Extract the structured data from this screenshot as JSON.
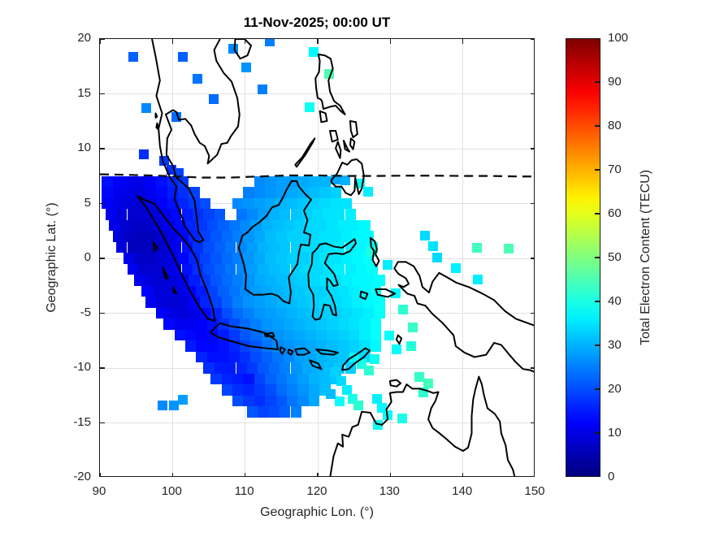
{
  "title": "11-Nov-2025; 00:00 UT",
  "axes": {
    "xlabel": "Geographic Lon. (°)",
    "ylabel": "Geographic Lat. (°)",
    "x_ticks": [
      90,
      100,
      110,
      120,
      130,
      140,
      150
    ],
    "y_ticks": [
      20,
      15,
      10,
      5,
      0,
      -5,
      -10,
      -15,
      -20
    ],
    "xlim": [
      90,
      150
    ],
    "ylim": [
      -20,
      20
    ],
    "grid": true
  },
  "colorbar": {
    "label": "Total Electron Content (TECU)",
    "ticks": [
      0,
      10,
      20,
      30,
      40,
      50,
      60,
      70,
      80,
      90,
      100
    ],
    "min": 0,
    "max": 100,
    "colormap": "jet"
  },
  "chart_data": {
    "type": "heatmap",
    "title": "11-Nov-2025; 00:00 UT",
    "xlabel": "Geographic Lon. (°)",
    "ylabel": "Geographic Lat. (°)",
    "xlim": [
      90,
      150
    ],
    "ylim": [
      -20,
      20
    ],
    "units": "TECU",
    "clim": [
      0,
      100
    ],
    "colormap": "jet",
    "legend": "colorbar right",
    "annotations": [
      "dashed line: magnetic dip equator near 7.5° N"
    ],
    "dip_equator": [
      [
        90,
        7.62
      ],
      [
        95,
        7.55
      ],
      [
        100,
        7.45
      ],
      [
        104,
        7.32
      ],
      [
        108,
        7.32
      ],
      [
        112,
        7.42
      ],
      [
        116,
        7.52
      ],
      [
        120,
        7.52
      ],
      [
        124,
        7.47
      ],
      [
        128,
        7.47
      ],
      [
        132,
        7.5
      ],
      [
        136,
        7.5
      ],
      [
        140,
        7.47
      ],
      [
        144,
        7.47
      ],
      [
        148,
        7.42
      ],
      [
        150,
        7.42
      ]
    ],
    "cell_size_deg": {
      "lon": 1.5,
      "lat": 1.0
    },
    "rows": [
      {
        "lat": 7,
        "lon_start": 91,
        "values": [
          14,
          12,
          11,
          10,
          12,
          14,
          16,
          18,
          null,
          null,
          null,
          null,
          null,
          null,
          26,
          27,
          28,
          28,
          29,
          30,
          30
        ]
      },
      {
        "lat": 6,
        "lon_start": 91,
        "values": [
          13,
          11,
          10,
          9,
          11,
          13,
          15,
          17,
          19,
          null,
          null,
          null,
          null,
          25,
          26,
          27,
          28,
          29,
          30,
          31,
          32,
          33
        ]
      },
      {
        "lat": 5,
        "lon_start": 91,
        "values": [
          12,
          10,
          9,
          8,
          10,
          12,
          14,
          16,
          18,
          20,
          null,
          null,
          26,
          27,
          28,
          29,
          30,
          31,
          32,
          33,
          34,
          35,
          35
        ]
      },
      {
        "lat": 4,
        "lon_start": 91.5,
        "values": [
          11,
          9,
          8,
          8,
          9,
          11,
          13,
          15,
          17,
          19,
          21,
          null,
          24,
          26,
          28,
          30,
          31,
          32,
          33,
          34,
          35,
          35,
          36
        ]
      },
      {
        "lat": 3,
        "lon_start": 92,
        "values": [
          10,
          8,
          7,
          7,
          9,
          11,
          13,
          16,
          18,
          20,
          22,
          24,
          26,
          28,
          30,
          31,
          32,
          33,
          34,
          34,
          35,
          36,
          36,
          37
        ]
      },
      {
        "lat": 2,
        "lon_start": 92.5,
        "values": [
          9,
          7,
          6,
          6,
          8,
          10,
          13,
          16,
          19,
          21,
          23,
          25,
          27,
          29,
          31,
          32,
          33,
          33,
          34,
          35,
          35,
          36,
          37,
          37
        ]
      },
      {
        "lat": 1,
        "lon_start": 93,
        "values": [
          9,
          6,
          6,
          6,
          8,
          11,
          14,
          17,
          20,
          22,
          24,
          26,
          28,
          30,
          31,
          32,
          33,
          34,
          34,
          35,
          36,
          36,
          37,
          38
        ]
      },
      {
        "lat": 0,
        "lon_start": 94,
        "values": [
          10,
          7,
          7,
          8,
          10,
          13,
          16,
          19,
          21,
          23,
          25,
          27,
          29,
          31,
          32,
          33,
          33,
          34,
          35,
          35,
          36,
          37,
          38
        ]
      },
      {
        "lat": -1,
        "lon_start": 94.5,
        "values": [
          11,
          8,
          8,
          9,
          11,
          14,
          17,
          20,
          22,
          24,
          26,
          28,
          30,
          31,
          32,
          33,
          34,
          34,
          35,
          36,
          36,
          37,
          38
        ]
      },
      {
        "lat": -2,
        "lon_start": 95.5,
        "values": [
          11,
          9,
          8,
          9,
          11,
          15,
          18,
          21,
          23,
          25,
          27,
          29,
          30,
          31,
          32,
          33,
          34,
          35,
          35,
          36,
          37,
          37,
          38
        ]
      },
      {
        "lat": -3,
        "lon_start": 96.5,
        "values": [
          12,
          9,
          9,
          10,
          12,
          15,
          19,
          22,
          24,
          26,
          28,
          29,
          30,
          31,
          32,
          33,
          33,
          34,
          35,
          36,
          37,
          38
        ]
      },
      {
        "lat": -4,
        "lon_start": 97,
        "values": [
          11,
          9,
          8,
          9,
          12,
          16,
          19,
          22,
          25,
          27,
          28,
          29,
          30,
          31,
          32,
          33,
          34,
          34,
          35,
          36,
          37,
          38
        ]
      },
      {
        "lat": -5,
        "lon_start": 98.5,
        "values": [
          12,
          10,
          9,
          10,
          13,
          16,
          20,
          23,
          25,
          27,
          28,
          29,
          30,
          31,
          32,
          33,
          33,
          34,
          35,
          36,
          38
        ]
      },
      {
        "lat": -6,
        "lon_start": 99.5,
        "values": [
          13,
          11,
          11,
          12,
          14,
          17,
          20,
          23,
          25,
          27,
          28,
          29,
          30,
          31,
          32,
          33,
          34,
          35,
          36,
          38
        ]
      },
      {
        "lat": -7,
        "lon_start": 101,
        "values": [
          14,
          13,
          12,
          13,
          15,
          18,
          21,
          23,
          25,
          27,
          28,
          29,
          30,
          31,
          32,
          33,
          34,
          36,
          38
        ]
      },
      {
        "lat": -8,
        "lon_start": 102.5,
        "values": [
          15,
          13,
          13,
          14,
          16,
          19,
          21,
          24,
          26,
          27,
          28,
          29,
          30,
          31,
          32,
          33,
          35,
          37
        ]
      },
      {
        "lat": -9,
        "lon_start": 104,
        "values": [
          16,
          14,
          14,
          15,
          17,
          20,
          22,
          24,
          26,
          28,
          29,
          30,
          31,
          32,
          33,
          34
        ]
      },
      {
        "lat": -10,
        "lon_start": 105,
        "values": [
          17,
          15,
          15,
          16,
          18,
          21,
          23,
          25,
          27,
          29,
          30,
          31,
          32,
          33
        ]
      },
      {
        "lat": -11,
        "lon_start": 106,
        "values": [
          18,
          16,
          15,
          14,
          19,
          22,
          24,
          26,
          28,
          30,
          31,
          32
        ]
      },
      {
        "lat": -12,
        "lon_start": 107.5,
        "values": [
          19,
          17,
          16,
          18,
          20,
          23,
          25,
          27,
          29,
          31
        ]
      },
      {
        "lat": -13,
        "lon_start": 109,
        "values": [
          20,
          18,
          17,
          19,
          21,
          24,
          26,
          29
        ]
      },
      {
        "lat": -14,
        "lon_start": 111,
        "values": [
          21,
          19,
          20,
          22,
          25
        ]
      }
    ],
    "scattered": [
      [
        94.6,
        18.4,
        22
      ],
      [
        101.4,
        18.4,
        22
      ],
      [
        103.4,
        16.4,
        24
      ],
      [
        108.4,
        19.1,
        26
      ],
      [
        110.1,
        17.4,
        27
      ],
      [
        113.4,
        19.8,
        25
      ],
      [
        105.7,
        14.5,
        23
      ],
      [
        112.4,
        15.4,
        25
      ],
      [
        96.4,
        13.7,
        26
      ],
      [
        100.5,
        12.9,
        23
      ],
      [
        96.1,
        9.5,
        17
      ],
      [
        98.8,
        8.9,
        18
      ],
      [
        99.9,
        8.1,
        17
      ],
      [
        100.9,
        7.8,
        19
      ],
      [
        122.5,
        7.2,
        29
      ],
      [
        123.8,
        7.1,
        30
      ],
      [
        119.4,
        18.8,
        37
      ],
      [
        121.6,
        16.8,
        45
      ],
      [
        118.9,
        13.8,
        39
      ],
      [
        125.8,
        6.8,
        38
      ],
      [
        126.9,
        6.1,
        36
      ],
      [
        127.4,
        0.6,
        41
      ],
      [
        129.6,
        -0.6,
        36
      ],
      [
        130.7,
        -3.2,
        37
      ],
      [
        131.7,
        -4.7,
        42
      ],
      [
        133.1,
        -6.3,
        43
      ],
      [
        134.8,
        2.1,
        34
      ],
      [
        135.9,
        1.1,
        35
      ],
      [
        136.4,
        0.1,
        34
      ],
      [
        141.9,
        1.0,
        44
      ],
      [
        146.3,
        0.9,
        45
      ],
      [
        139.0,
        -0.9,
        36
      ],
      [
        142.1,
        -1.9,
        36
      ],
      [
        129.9,
        -7.0,
        38
      ],
      [
        130.9,
        -8.3,
        38
      ],
      [
        132.9,
        -8.0,
        41
      ],
      [
        122.4,
        -10.4,
        33
      ],
      [
        123.2,
        -11.2,
        34
      ],
      [
        124.0,
        -12.0,
        36
      ],
      [
        124.8,
        -12.8,
        40
      ],
      [
        125.6,
        -13.4,
        42
      ],
      [
        123.0,
        -13.0,
        38
      ],
      [
        121.8,
        -12.4,
        31
      ],
      [
        125.0,
        -9.0,
        37
      ],
      [
        126.0,
        -9.6,
        40
      ],
      [
        127.0,
        -10.2,
        42
      ],
      [
        127.8,
        -9.2,
        39
      ],
      [
        128.8,
        -13.6,
        37
      ],
      [
        129.6,
        -14.3,
        38
      ],
      [
        131.6,
        -14.6,
        40
      ],
      [
        128.3,
        -15.2,
        39
      ],
      [
        134.0,
        -10.8,
        43
      ],
      [
        135.2,
        -11.4,
        44
      ],
      [
        134.6,
        -12.2,
        42
      ],
      [
        128.2,
        -12.8,
        36
      ],
      [
        98.6,
        -13.4,
        26
      ],
      [
        100.2,
        -13.4,
        27
      ],
      [
        101.4,
        -12.9,
        28
      ]
    ]
  }
}
